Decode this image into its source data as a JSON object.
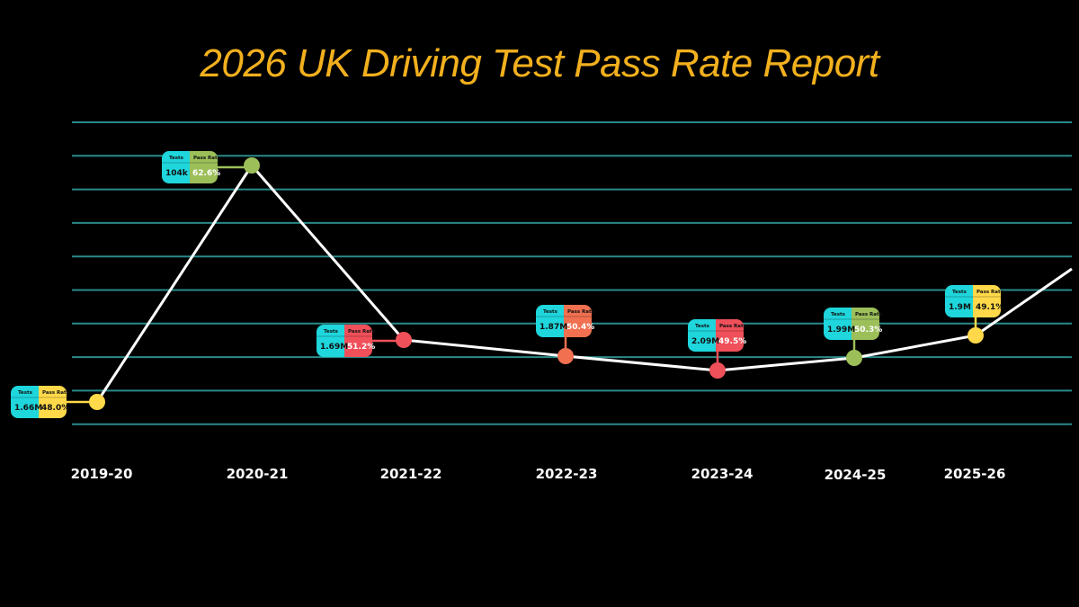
{
  "chart_data": {
    "type": "line",
    "title": "2026 UK Driving Test Pass Rate Report",
    "categories": [
      "2019-20",
      "2020-21",
      "2021-22",
      "2022-23",
      "2023-24",
      "2024-25",
      "2025-26"
    ],
    "series": [
      {
        "values": [
          48.0,
          62.6,
          51.2,
          50.4,
          49.5,
          50.3,
          49.1
        ]
      }
    ],
    "labels": {
      "tests_header": "Tests",
      "rate_header": "Pass Rate"
    },
    "tests": [
      "1.66M",
      "104k",
      "1.69M",
      "1.87M",
      "2.09M",
      "1.99M",
      "1.9M"
    ],
    "pass_rates": [
      "48.0%",
      "62.6%",
      "51.2%",
      "50.4%",
      "49.5%",
      "50.3%",
      "49.1%"
    ],
    "point_colors": [
      "#ffd94a",
      "#9cbf5a",
      "#f0505a",
      "#f07050",
      "#f0505a",
      "#9cbf5a",
      "#ffd94a"
    ],
    "grid": true,
    "colors": {
      "background": "#000000",
      "title": "#f2b01e",
      "line": "#ffffff",
      "gridline": "#2a8a8a",
      "tests_cell": "#1ed6dc"
    }
  }
}
